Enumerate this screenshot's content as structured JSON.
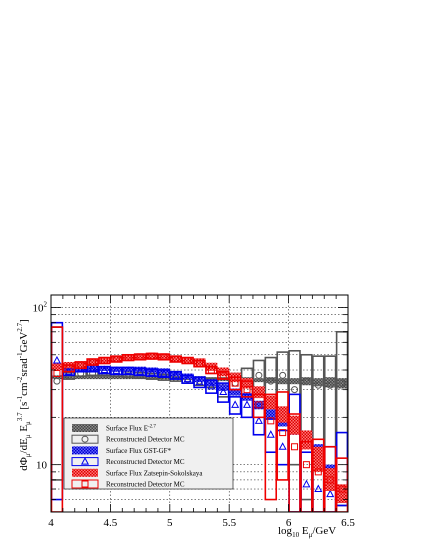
{
  "chart_data": {
    "type": "bar",
    "title": "",
    "xlabel": "log10 Eμ/GeV",
    "ylabel": "dΦμ/dEμ Eμ^3.7 [s^-1cm^-2srad^-1GeV^2.7]",
    "xlim": [
      4,
      6.5
    ],
    "ylim": [
      5,
      120
    ],
    "log_y": true,
    "grid": true,
    "x_ticks": [
      "4",
      "4.5",
      "5",
      "5.5",
      "6",
      "6.5"
    ],
    "y_ticks": [
      {
        "value": 100,
        "label": "10",
        "exp": "2"
      },
      {
        "value": 10,
        "label": "10",
        "exp": ""
      }
    ],
    "bin_edges": [
      4.0,
      4.1,
      4.2,
      4.3,
      4.4,
      4.5,
      4.6,
      4.7,
      4.8,
      4.9,
      5.0,
      5.1,
      5.2,
      5.3,
      5.4,
      5.5,
      5.6,
      5.7,
      5.8,
      5.9,
      6.0,
      6.1,
      6.2,
      6.3,
      6.4,
      6.5
    ],
    "series": [
      {
        "name": "Surface Flux E",
        "name_sup": "-2.7",
        "kind": "band",
        "color": "#555555",
        "values": [
          36,
          36,
          36,
          36,
          36,
          36,
          36,
          36,
          36,
          36,
          36,
          35.5,
          35.5,
          35,
          35,
          35,
          35,
          34.5,
          34.5,
          34,
          34,
          34,
          33.5,
          33.5,
          33
        ],
        "err_low": [
          35,
          35,
          35,
          35,
          35,
          35,
          35,
          35,
          35,
          35,
          35,
          34.5,
          34.5,
          34,
          34,
          34,
          34,
          33.5,
          33,
          32.5,
          32.5,
          32,
          31.5,
          31,
          30.5
        ],
        "err_high": [
          37,
          37,
          37,
          37,
          37,
          37,
          37,
          37,
          37,
          37,
          37,
          36.5,
          36.5,
          36,
          36,
          36,
          36,
          35.5,
          36,
          35.5,
          35.5,
          36,
          35.5,
          36,
          35.5
        ]
      },
      {
        "name": "Reconstructed Detector MC",
        "kind": "mc",
        "marker": "circle",
        "color": "#555555",
        "values": [
          34,
          37,
          38,
          38,
          38.5,
          38,
          37.5,
          37,
          36.5,
          36,
          35.5,
          35,
          34,
          33,
          31,
          33,
          33,
          37,
          34,
          37,
          30,
          34,
          32,
          32,
          33
        ],
        "err_low": [
          8,
          35,
          36.5,
          37,
          37,
          36.5,
          36,
          35.5,
          35,
          34.5,
          34,
          33,
          32,
          31,
          27,
          29,
          28,
          28,
          20,
          20,
          10,
          6,
          5,
          9,
          5.5
        ],
        "err_high": [
          75,
          38.5,
          39.5,
          39.5,
          40,
          39.5,
          39,
          38.5,
          38,
          37.5,
          37,
          37,
          36,
          35.5,
          35.5,
          38,
          41,
          46,
          48,
          52,
          53,
          50,
          49,
          49,
          70
        ]
      },
      {
        "name": "Surface Flux GST-GF*",
        "kind": "band",
        "color": "#0000ee",
        "values": [
          42,
          40.5,
          41,
          41,
          41,
          40.5,
          40.5,
          40.5,
          40,
          39.5,
          38,
          36.5,
          35,
          33,
          31,
          29,
          27,
          24,
          21,
          19,
          17,
          15,
          12,
          9,
          6.5
        ],
        "err_low": [
          40,
          39,
          39.5,
          39.5,
          39.5,
          39,
          39,
          39,
          38.5,
          38,
          36.5,
          35,
          33.5,
          31.5,
          29.5,
          27.5,
          25.5,
          22.5,
          19.5,
          17.5,
          15.5,
          13.5,
          10.5,
          8,
          5.8
        ],
        "err_high": [
          44,
          42,
          42.5,
          42.5,
          42.5,
          42,
          42,
          42,
          41.5,
          41,
          39.5,
          38,
          36.5,
          34.5,
          32.5,
          30.5,
          28.5,
          25.5,
          22.5,
          20.5,
          18.5,
          16.5,
          13.5,
          10,
          7.2
        ]
      },
      {
        "name": "Reconstructed Detector MC",
        "kind": "mc",
        "marker": "triangle",
        "color": "#0000ee",
        "values": [
          46,
          39,
          41,
          41,
          40,
          39.5,
          39.5,
          39,
          38.5,
          38,
          37,
          35,
          33.5,
          31.5,
          29,
          24,
          24,
          19,
          15.5,
          13,
          17,
          7.5,
          7,
          6.5,
          6
        ],
        "err_low": [
          6,
          37,
          39,
          39,
          38,
          37.5,
          37.5,
          37,
          36.5,
          36,
          35,
          33,
          31,
          28.5,
          25,
          21,
          20,
          15.5,
          12,
          10,
          5,
          5,
          5,
          5,
          5.5
        ],
        "err_high": [
          80,
          41,
          43,
          43,
          42,
          41.5,
          41.5,
          41,
          40.5,
          40,
          39,
          37,
          36,
          34.5,
          33,
          27,
          28,
          23,
          19.5,
          16.5,
          28,
          12,
          12.5,
          13,
          16
        ]
      },
      {
        "name": "Surface Flux Zatsepin-Sokolskaya",
        "kind": "band",
        "color": "#ee0000",
        "values": [
          42,
          43,
          43.5,
          45,
          46,
          47,
          48,
          48,
          49,
          48.5,
          47,
          46,
          45,
          42,
          39,
          36,
          33,
          29,
          25,
          21,
          18,
          14.5,
          11,
          8,
          6.5
        ],
        "err_low": [
          40,
          41,
          41.5,
          43,
          44,
          45,
          46,
          46,
          47,
          46.5,
          45,
          44,
          42.5,
          39.5,
          36.5,
          33.5,
          30.5,
          26.5,
          22.5,
          18.5,
          15.5,
          12.5,
          9,
          6.8,
          5.7
        ],
        "err_high": [
          44,
          45,
          45.5,
          47,
          48,
          49,
          50,
          50,
          51,
          50.5,
          49,
          48,
          47.5,
          44.5,
          41.5,
          38.5,
          35.5,
          31.5,
          27.5,
          23.5,
          20.5,
          16.5,
          13,
          9.5,
          7.5
        ]
      },
      {
        "name": "Reconstructed Detector MC",
        "kind": "mc",
        "marker": "square",
        "color": "#ee0000",
        "values": [
          38,
          41,
          43,
          45,
          46,
          47,
          48,
          48.5,
          49,
          48.5,
          47,
          46,
          44,
          40,
          37,
          33,
          30,
          24,
          19,
          16,
          13,
          10,
          9,
          8,
          7
        ],
        "err_low": [
          5,
          39,
          41,
          43,
          44,
          45,
          46,
          46.5,
          47,
          46.5,
          45,
          44,
          42,
          38,
          35,
          30,
          27,
          20,
          6,
          8,
          5,
          5,
          5,
          5,
          5
        ],
        "err_high": [
          75,
          43,
          45,
          47,
          48,
          49,
          50,
          50.5,
          51,
          50.5,
          49,
          48,
          46,
          42,
          39,
          36,
          34,
          28,
          28,
          29,
          21,
          14,
          14.5,
          13,
          11
        ]
      }
    ],
    "legend": {
      "position": "bottom-left"
    }
  }
}
